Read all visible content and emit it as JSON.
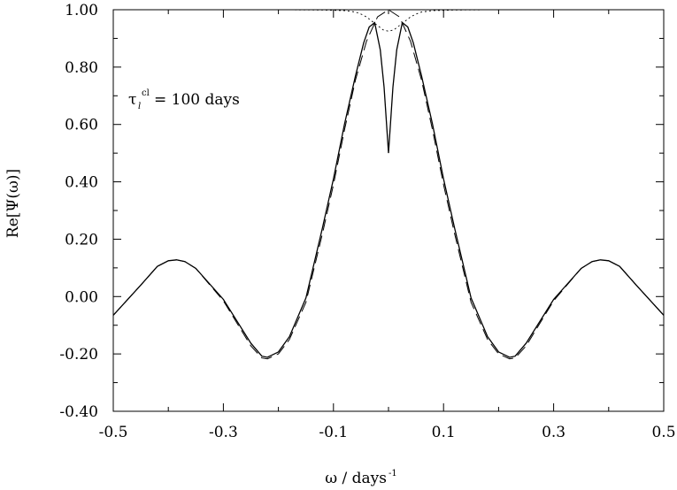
{
  "chart_data": {
    "type": "line",
    "xlabel_main": "ω / days",
    "xlabel_sup": "-1",
    "ylabel": "Re[Ψ(ω)]",
    "xlim": [
      -0.5,
      0.5
    ],
    "ylim": [
      -0.4,
      1.0
    ],
    "x_ticks": [
      -0.5,
      -0.3,
      -0.1,
      0.1,
      0.3,
      0.5
    ],
    "x_tick_labels": [
      "-0.5",
      "-0.3",
      "-0.1",
      "0.1",
      "0.3",
      "0.5"
    ],
    "y_ticks": [
      -0.4,
      -0.2,
      0.0,
      0.2,
      0.4,
      0.6,
      0.8,
      1.0
    ],
    "y_tick_labels": [
      "-0.40",
      "-0.20",
      "0.00",
      "0.20",
      "0.40",
      "0.60",
      "0.80",
      "1.00"
    ],
    "annotation": {
      "symbol": "τ",
      "subscript": "l",
      "superscript": "cl",
      "text": "= 100 days"
    },
    "grid": false,
    "series": [
      {
        "style": "solid",
        "x": [
          -0.5,
          -0.45,
          -0.42,
          -0.4,
          -0.385,
          -0.37,
          -0.35,
          -0.3,
          -0.25,
          -0.23,
          -0.22,
          -0.2,
          -0.18,
          -0.15,
          -0.12,
          -0.1,
          -0.08,
          -0.06,
          -0.045,
          -0.035,
          -0.025,
          -0.015,
          -0.008,
          0.0,
          0.008,
          0.015,
          0.025,
          0.035,
          0.045,
          0.06,
          0.08,
          0.1,
          0.12,
          0.15,
          0.18,
          0.2,
          0.22,
          0.23,
          0.25,
          0.3,
          0.35,
          0.37,
          0.385,
          0.4,
          0.42,
          0.45,
          0.5
        ],
        "y": [
          -0.065,
          0.04,
          0.105,
          0.125,
          0.128,
          0.122,
          0.098,
          -0.01,
          -0.163,
          -0.208,
          -0.212,
          -0.193,
          -0.14,
          -0.005,
          0.24,
          0.41,
          0.6,
          0.77,
          0.885,
          0.94,
          0.955,
          0.86,
          0.73,
          0.5,
          0.73,
          0.86,
          0.955,
          0.94,
          0.885,
          0.77,
          0.6,
          0.41,
          0.24,
          -0.005,
          -0.14,
          -0.193,
          -0.212,
          -0.208,
          -0.163,
          -0.01,
          0.098,
          0.122,
          0.128,
          0.125,
          0.105,
          0.04,
          -0.065
        ]
      },
      {
        "style": "dashed",
        "x": [
          -0.5,
          -0.45,
          -0.42,
          -0.4,
          -0.385,
          -0.37,
          -0.35,
          -0.3,
          -0.25,
          -0.23,
          -0.22,
          -0.2,
          -0.18,
          -0.15,
          -0.12,
          -0.1,
          -0.08,
          -0.06,
          -0.04,
          -0.02,
          0.0,
          0.02,
          0.04,
          0.06,
          0.08,
          0.1,
          0.12,
          0.15,
          0.18,
          0.2,
          0.22,
          0.23,
          0.25,
          0.3,
          0.35,
          0.37,
          0.385,
          0.4,
          0.42,
          0.45,
          0.5
        ],
        "y": [
          -0.065,
          0.04,
          0.105,
          0.125,
          0.128,
          0.122,
          0.098,
          -0.015,
          -0.172,
          -0.214,
          -0.217,
          -0.2,
          -0.15,
          -0.02,
          0.22,
          0.39,
          0.58,
          0.755,
          0.89,
          0.975,
          1.0,
          0.975,
          0.89,
          0.755,
          0.58,
          0.39,
          0.22,
          -0.02,
          -0.15,
          -0.2,
          -0.217,
          -0.214,
          -0.172,
          -0.015,
          0.098,
          0.122,
          0.128,
          0.125,
          0.105,
          0.04,
          -0.065
        ]
      },
      {
        "style": "dotted",
        "x": [
          -0.5,
          -0.2,
          -0.12,
          -0.08,
          -0.06,
          -0.05,
          -0.04,
          -0.03,
          -0.02,
          -0.01,
          0.0,
          0.01,
          0.02,
          0.03,
          0.04,
          0.05,
          0.06,
          0.08,
          0.12,
          0.2,
          0.5
        ],
        "y": [
          1.0,
          1.0,
          0.999,
          0.997,
          0.992,
          0.985,
          0.975,
          0.96,
          0.945,
          0.93,
          0.925,
          0.93,
          0.945,
          0.96,
          0.975,
          0.985,
          0.992,
          0.997,
          0.999,
          1.0,
          1.0
        ]
      }
    ]
  }
}
